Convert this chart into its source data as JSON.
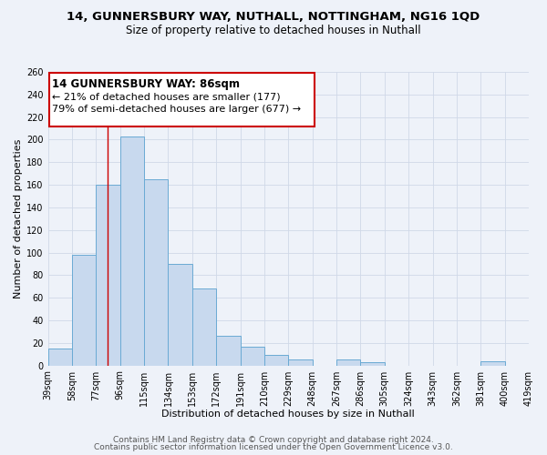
{
  "title": "14, GUNNERSBURY WAY, NUTHALL, NOTTINGHAM, NG16 1QD",
  "subtitle": "Size of property relative to detached houses in Nuthall",
  "xlabel": "Distribution of detached houses by size in Nuthall",
  "ylabel": "Number of detached properties",
  "bin_edges": [
    39,
    58,
    77,
    96,
    115,
    134,
    153,
    172,
    191,
    210,
    229,
    248,
    267,
    286,
    305,
    324,
    343,
    362,
    381,
    400,
    419
  ],
  "bar_heights": [
    15,
    98,
    160,
    203,
    165,
    90,
    68,
    26,
    17,
    9,
    5,
    0,
    5,
    3,
    0,
    0,
    0,
    0,
    4,
    0
  ],
  "bar_color": "#c8d9ee",
  "bar_edge_color": "#6aaad4",
  "property_line_x": 86,
  "property_line_color": "#cc0000",
  "ylim": [
    0,
    260
  ],
  "yticks": [
    0,
    20,
    40,
    60,
    80,
    100,
    120,
    140,
    160,
    180,
    200,
    220,
    240,
    260
  ],
  "annotation_title": "14 GUNNERSBURY WAY: 86sqm",
  "annotation_line1": "← 21% of detached houses are smaller (177)",
  "annotation_line2": "79% of semi-detached houses are larger (677) →",
  "annotation_box_color": "#ffffff",
  "annotation_box_edge_color": "#cc0000",
  "footer1": "Contains HM Land Registry data © Crown copyright and database right 2024.",
  "footer2": "Contains public sector information licensed under the Open Government Licence v3.0.",
  "background_color": "#eef2f9",
  "grid_color": "#d0d8e8",
  "title_fontsize": 9.5,
  "subtitle_fontsize": 8.5,
  "axis_label_fontsize": 8,
  "tick_fontsize": 7,
  "annotation_title_fontsize": 8.5,
  "annotation_body_fontsize": 8,
  "footer_fontsize": 6.5
}
